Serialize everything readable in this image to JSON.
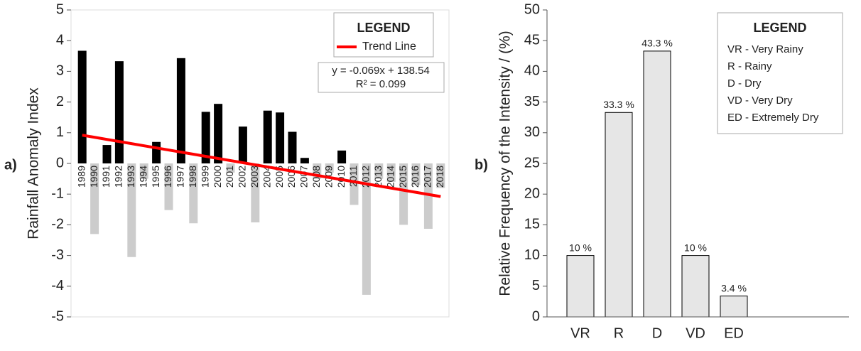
{
  "chart_data": [
    {
      "type": "bar",
      "panel_label": "a)",
      "y_label": "Rainfall Anomaly Index",
      "categories": [
        "1989",
        "1990",
        "1991",
        "1992",
        "1993",
        "1994",
        "1995",
        "1996",
        "1997",
        "1998",
        "1999",
        "2000",
        "2001",
        "2002",
        "2003",
        "2004",
        "2005",
        "2006",
        "2007",
        "2008",
        "2009",
        "2010",
        "2011",
        "2012",
        "2013",
        "2014",
        "2015",
        "2016",
        "2017",
        "2018"
      ],
      "values": [
        3.67,
        -2.3,
        0.6,
        3.33,
        -3.05,
        -0.5,
        0.7,
        -1.52,
        3.43,
        -1.95,
        1.68,
        1.94,
        -0.3,
        1.2,
        -1.92,
        1.72,
        1.66,
        1.03,
        0.18,
        -0.5,
        -0.3,
        0.42,
        -1.35,
        -4.28,
        -0.5,
        -0.6,
        -2.0,
        -0.7,
        -2.13,
        -0.8
      ],
      "color_positive": "#000000",
      "color_negative": "#cccccc",
      "ylim": [
        -5,
        5
      ],
      "yticks": [
        -5,
        -4,
        -3,
        -2,
        -1,
        0,
        1,
        2,
        3,
        4,
        5
      ],
      "legend_title": "LEGEND",
      "trend": {
        "name": "Trend Line",
        "color": "#ff0000",
        "values": [
          0.92,
          -1.08
        ]
      },
      "annotations": [
        "y = -0.069x + 138.54",
        "R² = 0.099"
      ]
    },
    {
      "type": "bar",
      "panel_label": "b)",
      "y_label": "Relative Frequency of the Intensity / (%)",
      "categories": [
        "VR",
        "R",
        "D",
        "VD",
        "ED"
      ],
      "values": [
        10,
        33.3,
        43.3,
        10,
        3.4
      ],
      "value_labels": [
        "10 %",
        "33.3 %",
        "43.3 %",
        "10 %",
        "3.4 %"
      ],
      "color": "#e6e6e6",
      "ylim": [
        0,
        50
      ],
      "yticks": [
        0,
        5,
        10,
        15,
        20,
        25,
        30,
        35,
        40,
        45,
        50
      ],
      "legend_title": "LEGEND",
      "legend_entries": [
        "VR - Very Rainy",
        "R - Rainy",
        "D - Dry",
        "VD - Very Dry",
        "ED - Extremely Dry"
      ]
    }
  ]
}
